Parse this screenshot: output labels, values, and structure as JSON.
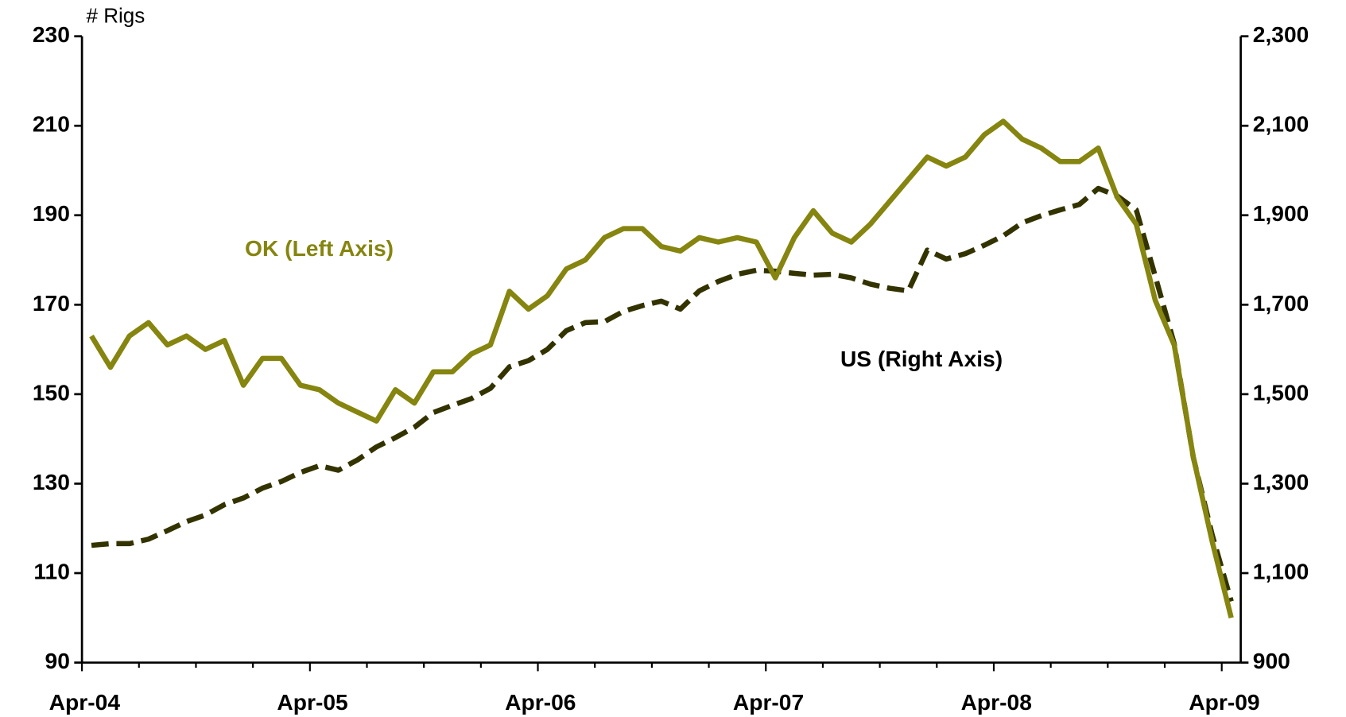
{
  "chart_data": {
    "type": "line",
    "y_axis_label": "# Rigs",
    "annotations": [
      "OK (Left Axis)",
      "US (Right Axis)"
    ],
    "categories": [
      "Apr-04",
      null,
      null,
      null,
      null,
      null,
      null,
      null,
      null,
      null,
      null,
      null,
      "Apr-05",
      null,
      null,
      null,
      null,
      null,
      null,
      null,
      null,
      null,
      null,
      null,
      "Apr-06",
      null,
      null,
      null,
      null,
      null,
      null,
      null,
      null,
      null,
      null,
      null,
      "Apr-07",
      null,
      null,
      null,
      null,
      null,
      null,
      null,
      null,
      null,
      null,
      null,
      "Apr-08",
      null,
      null,
      null,
      null,
      null,
      null,
      null,
      null,
      null,
      null,
      null,
      "Apr-09"
    ],
    "series": [
      {
        "name": "OK (Left Axis)",
        "color": "#85850f",
        "axis": "y",
        "dashed": false,
        "values": [
          163,
          156,
          163,
          166,
          161,
          163,
          160,
          162,
          152,
          158,
          158,
          152,
          151,
          148,
          146,
          144,
          151,
          148,
          155,
          155,
          159,
          161,
          173,
          169,
          172,
          178,
          180,
          185,
          187,
          187,
          183,
          182,
          185,
          184,
          185,
          184,
          176,
          185,
          191,
          186,
          184,
          188,
          193,
          198,
          203,
          201,
          203,
          208,
          211,
          207,
          205,
          202,
          202,
          205,
          194,
          188,
          171,
          161,
          136,
          117,
          100
        ]
      },
      {
        "name": "US (Right Axis)",
        "color": "#333300",
        "axis": "y2",
        "dashed": true,
        "values": [
          1162,
          1166,
          1166,
          1176,
          1195,
          1215,
          1230,
          1253,
          1268,
          1290,
          1305,
          1325,
          1340,
          1330,
          1353,
          1382,
          1403,
          1426,
          1459,
          1475,
          1490,
          1513,
          1561,
          1575,
          1600,
          1642,
          1660,
          1662,
          1685,
          1698,
          1708,
          1690,
          1731,
          1752,
          1768,
          1777,
          1775,
          1770,
          1766,
          1768,
          1760,
          1746,
          1737,
          1731,
          1822,
          1802,
          1814,
          1833,
          1854,
          1883,
          1899,
          1912,
          1924,
          1960,
          1943,
          1912,
          1764,
          1613,
          1359,
          1185,
          1037
        ]
      }
    ],
    "ylim": [
      90,
      230
    ],
    "yticks": [
      90,
      110,
      130,
      150,
      170,
      190,
      210,
      230
    ],
    "y2lim": [
      900,
      2300
    ],
    "y2ticks": [
      900,
      {
        "value": 1100,
        "label": "1,100"
      },
      {
        "value": 1300,
        "label": "1,300"
      },
      {
        "value": 1500,
        "label": "1,500"
      },
      {
        "value": 1700,
        "label": "1,700"
      },
      {
        "value": 1900,
        "label": "1,900"
      },
      {
        "value": 2100,
        "label": "2,100"
      },
      {
        "value": 2300,
        "label": "2,300"
      }
    ],
    "grid": false
  }
}
